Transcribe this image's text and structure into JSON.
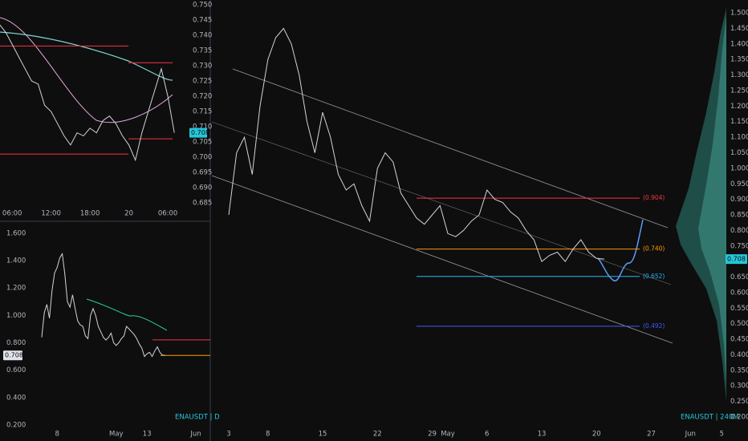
{
  "chart_data": [
    {
      "type": "line",
      "color": "#d1d4dc",
      "x": [
        null,
        null,
        "06:00",
        null,
        null,
        null,
        null,
        null,
        "12:00",
        null,
        null,
        null,
        null,
        null,
        "18:00",
        null,
        null,
        null,
        null,
        null,
        "20",
        null,
        null,
        null,
        null,
        null,
        "06:00",
        null
      ],
      "values": [
        0.7437,
        0.741,
        0.737,
        0.733,
        0.729,
        0.725,
        0.724,
        0.717,
        0.715,
        0.711,
        0.707,
        0.704,
        0.708,
        0.707,
        0.7095,
        0.708,
        0.712,
        0.7135,
        0.711,
        0.707,
        0.704,
        0.699,
        0.708,
        0.715,
        0.722,
        0.729,
        0.72,
        0.708
      ],
      "ylim": [
        0.6805,
        0.7516
      ],
      "yticks": [
        {
          "value": 0.75,
          "label": "0.750"
        },
        {
          "value": 0.745,
          "label": "0.745"
        },
        {
          "value": 0.74,
          "label": "0.740"
        },
        {
          "value": 0.735,
          "label": "0.735"
        },
        {
          "value": 0.73,
          "label": "0.730"
        },
        {
          "value": 0.725,
          "label": "0.725"
        },
        {
          "value": 0.72,
          "label": "0.720"
        },
        {
          "value": 0.715,
          "label": "0.715"
        },
        {
          "value": 0.71,
          "label": "0.710"
        },
        {
          "value": 0.705,
          "label": "0.705"
        },
        {
          "value": 0.7,
          "label": "0.700"
        },
        {
          "value": 0.695,
          "label": "0.695"
        },
        {
          "value": 0.69,
          "label": "0.690"
        },
        {
          "value": 0.685,
          "label": "0.685"
        }
      ],
      "levels": [
        {
          "value": 0.7365,
          "color": "#f23645"
        },
        {
          "value": 0.731,
          "color": "#f23645"
        },
        {
          "value": 0.706,
          "color": "#f23645"
        },
        {
          "value": 0.701,
          "color": "#f23645"
        }
      ],
      "last_price": 0.708
    },
    {
      "type": "line",
      "color": "#d1d4dc",
      "symbol": "ENAUSDT | D",
      "x": [
        null,
        null,
        null,
        null,
        null,
        null,
        "8",
        null,
        null,
        null,
        null,
        null,
        null,
        null,
        null,
        null,
        null,
        null,
        null,
        null,
        null,
        null,
        null,
        null,
        null,
        null,
        null,
        null,
        null,
        "May",
        null,
        null,
        null,
        null,
        null,
        null,
        null,
        null,
        null,
        null,
        null,
        "13",
        null,
        null,
        null,
        null,
        null,
        null,
        null,
        null,
        null,
        null,
        null,
        null,
        null,
        null,
        null,
        null,
        null,
        null,
        "Jun"
      ],
      "values": [
        0.84,
        1.02,
        1.08,
        0.98,
        1.18,
        1.31,
        1.35,
        1.42,
        1.45,
        1.3,
        1.1,
        1.06,
        1.15,
        1.05,
        0.96,
        0.93,
        0.92,
        0.85,
        0.83,
        1.0,
        1.05,
        1.0,
        0.92,
        0.88,
        0.84,
        0.82,
        0.84,
        0.87,
        0.8,
        0.78,
        0.8,
        0.83,
        0.85,
        0.92,
        0.9,
        0.88,
        0.86,
        0.83,
        0.79,
        0.76,
        0.7,
        0.72,
        0.73,
        0.7,
        0.74,
        0.77,
        0.73,
        0.71,
        0.708,
        null,
        null,
        null,
        null,
        null,
        null,
        null,
        null,
        null,
        null,
        null,
        null
      ],
      "ylim": [
        0.141,
        1.664
      ],
      "yticks": [
        {
          "value": 1.6,
          "label": "1.600"
        },
        {
          "value": 1.4,
          "label": "1.400"
        },
        {
          "value": 1.2,
          "label": "1.200"
        },
        {
          "value": 1.0,
          "label": "1.000"
        },
        {
          "value": 0.8,
          "label": "0.800"
        },
        {
          "value": 0.6,
          "label": "0.600"
        },
        {
          "value": 0.4,
          "label": "0.400"
        },
        {
          "value": 0.2,
          "label": "0.200"
        }
      ],
      "levels": [
        {
          "value": 0.821,
          "color": "#f23645"
        },
        {
          "value": 0.708,
          "color": "#ff9800"
        }
      ],
      "last_price": 0.708
    },
    {
      "type": "line",
      "color": "#d1d4dc",
      "symbol": "ENAUSDT | 240M",
      "x": [
        "3",
        null,
        null,
        null,
        null,
        "8",
        null,
        null,
        null,
        null,
        null,
        null,
        "15",
        null,
        null,
        null,
        null,
        null,
        null,
        "22",
        null,
        null,
        null,
        null,
        null,
        null,
        "29",
        null,
        "May",
        null,
        null,
        null,
        null,
        "6",
        null,
        null,
        null,
        null,
        null,
        null,
        "13",
        null,
        null,
        null,
        null,
        null,
        null,
        "20",
        null,
        null,
        null,
        null,
        null,
        null,
        "27",
        null,
        null,
        null,
        null,
        "Jun",
        null,
        null,
        null,
        "5"
      ],
      "values": [
        0.85,
        1.05,
        1.1,
        0.98,
        1.2,
        1.35,
        1.42,
        1.45,
        1.4,
        1.3,
        1.15,
        1.05,
        1.18,
        1.1,
        0.98,
        0.93,
        0.95,
        0.88,
        0.83,
        1.0,
        1.05,
        1.02,
        0.92,
        0.88,
        0.84,
        0.82,
        0.85,
        0.88,
        0.79,
        0.78,
        0.8,
        0.83,
        0.85,
        0.93,
        0.9,
        0.89,
        0.86,
        0.84,
        0.8,
        0.77,
        0.7,
        0.72,
        0.73,
        0.7,
        0.74,
        0.77,
        0.73,
        0.71,
        0.708,
        null,
        null,
        null,
        null,
        null,
        null,
        null,
        null,
        null,
        null,
        null,
        null,
        null,
        null,
        null
      ],
      "ylim": [
        0.15,
        1.53
      ],
      "yticks": [
        {
          "value": 1.5,
          "label": "1.500"
        },
        {
          "value": 1.45,
          "label": "1.450"
        },
        {
          "value": 1.4,
          "label": "1.400"
        },
        {
          "value": 1.35,
          "label": "1.350"
        },
        {
          "value": 1.3,
          "label": "1.300"
        },
        {
          "value": 1.25,
          "label": "1.250"
        },
        {
          "value": 1.2,
          "label": "1.200"
        },
        {
          "value": 1.15,
          "label": "1.150"
        },
        {
          "value": 1.1,
          "label": "1.100"
        },
        {
          "value": 1.05,
          "label": "1.050"
        },
        {
          "value": 1.0,
          "label": "1.000"
        },
        {
          "value": 0.95,
          "label": "0.950"
        },
        {
          "value": 0.9,
          "label": "0.900"
        },
        {
          "value": 0.85,
          "label": "0.850"
        },
        {
          "value": 0.8,
          "label": "0.800"
        },
        {
          "value": 0.75,
          "label": "0.750"
        },
        {
          "value": 0.65,
          "label": "0.650"
        },
        {
          "value": 0.6,
          "label": "0.600"
        },
        {
          "value": 0.55,
          "label": "0.550"
        },
        {
          "value": 0.5,
          "label": "0.500"
        },
        {
          "value": 0.45,
          "label": "0.450"
        },
        {
          "value": 0.4,
          "label": "0.400"
        },
        {
          "value": 0.35,
          "label": "0.350"
        },
        {
          "value": 0.3,
          "label": "0.300"
        },
        {
          "value": 0.25,
          "label": "0.250"
        },
        {
          "value": 0.2,
          "label": "0.200"
        }
      ],
      "levels": [
        {
          "value": 0.904,
          "label": "(0.904)",
          "color": "#f23645"
        },
        {
          "value": 0.74,
          "label": "(0.740)",
          "color": "#ff9800"
        },
        {
          "value": 0.652,
          "label": "(0.652)",
          "color": "#29b6f6"
        },
        {
          "value": 0.492,
          "label": "(0.492)",
          "color": "#3d5afe"
        }
      ],
      "last_price": 0.708
    }
  ]
}
